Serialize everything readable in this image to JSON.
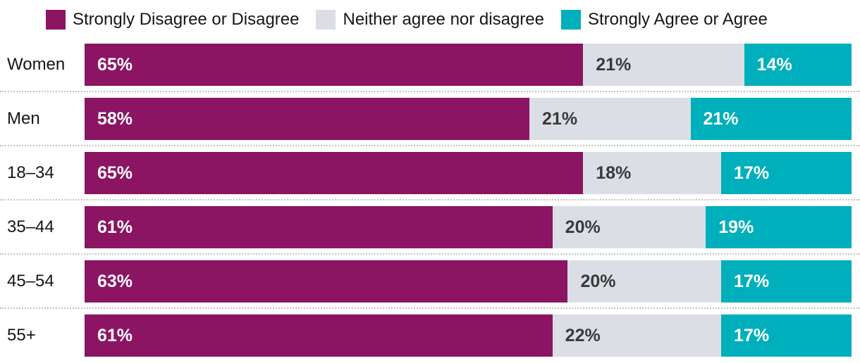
{
  "legend": {
    "position": "top"
  },
  "chart_data": {
    "type": "bar",
    "subtype": "stacked-horizontal",
    "categories": [
      "Women",
      "Men",
      "18–34",
      "35–44",
      "45–54",
      "55+"
    ],
    "series": [
      {
        "name": "Strongly Disagree or Disagree",
        "color": "#8B1563",
        "text_color": "#FFFFFF",
        "values": [
          65,
          58,
          65,
          61,
          63,
          61
        ]
      },
      {
        "name": "Neither agree nor disagree",
        "color": "#DBDFE5",
        "text_color": "#3A3A3A",
        "values": [
          21,
          21,
          18,
          20,
          20,
          22
        ]
      },
      {
        "name": "Strongly Agree or Agree",
        "color": "#00AFBC",
        "text_color": "#FFFFFF",
        "values": [
          14,
          21,
          17,
          19,
          17,
          17
        ]
      }
    ],
    "value_suffix": "%",
    "xlim": [
      0,
      100
    ],
    "grid": false,
    "legend_position": "top",
    "separator_style": "dotted"
  }
}
